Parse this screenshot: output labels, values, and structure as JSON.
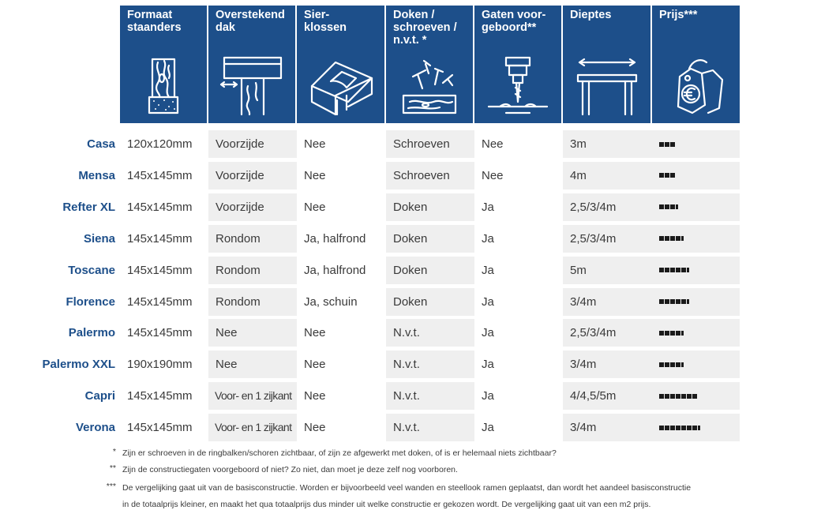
{
  "headers": [
    {
      "label": "Formaat\nstaanders",
      "icon": "wooden-post-icon"
    },
    {
      "label": "Overstekend\ndak",
      "icon": "roof-overhang-icon"
    },
    {
      "label": "Sier-\nklossen",
      "icon": "decorative-corner-block-icon"
    },
    {
      "label": "Doken /\nschroeven /\nn.v.t. *",
      "icon": "dowels-screws-icon"
    },
    {
      "label": "Gaten voor-\ngeboord**",
      "icon": "drill-hole-icon"
    },
    {
      "label": "Dieptes",
      "icon": "depth-table-icon"
    },
    {
      "label": "Prijs***",
      "icon": "price-tag-euro-icon"
    }
  ],
  "rows": [
    {
      "name": "Casa",
      "cells": [
        "120x120mm",
        "Voorzijde",
        "Nee",
        "Schroeven",
        "Nee",
        "3m"
      ],
      "price_level": 3
    },
    {
      "name": "Mensa",
      "cells": [
        "145x145mm",
        "Voorzijde",
        "Nee",
        "Schroeven",
        "Nee",
        "4m"
      ],
      "price_level": 3
    },
    {
      "name": "Refter XL",
      "cells": [
        "145x145mm",
        "Voorzijde",
        "Nee",
        "Doken",
        "Ja",
        "2,5/3/4m"
      ],
      "price_level": 3.5
    },
    {
      "name": "Siena",
      "cells": [
        "145x145mm",
        "Rondom",
        "Ja, halfrond",
        "Doken",
        "Ja",
        "2,5/3/4m"
      ],
      "price_level": 4.5
    },
    {
      "name": "Toscane",
      "cells": [
        "145x145mm",
        "Rondom",
        "Ja, halfrond",
        "Doken",
        "Ja",
        "5m"
      ],
      "price_level": 5.5
    },
    {
      "name": "Florence",
      "cells": [
        "145x145mm",
        "Rondom",
        "Ja, schuin",
        "Doken",
        "Ja",
        "3/4m"
      ],
      "price_level": 5.5
    },
    {
      "name": "Palermo",
      "cells": [
        "145x145mm",
        "Nee",
        "Nee",
        "N.v.t.",
        "Ja",
        "2,5/3/4m"
      ],
      "price_level": 4.5
    },
    {
      "name": "Palermo XXL",
      "cells": [
        "190x190mm",
        "Nee",
        "Nee",
        "N.v.t.",
        "Ja",
        "3/4m"
      ],
      "price_level": 4.5
    },
    {
      "name": "Capri",
      "cells": [
        "145x145mm",
        "Voor- en 1 zijkant",
        "Nee",
        "N.v.t.",
        "Ja",
        "4/4,5/5m"
      ],
      "price_level": 7
    },
    {
      "name": "Verona",
      "cells": [
        "145x145mm",
        "Voor- en 1 zijkant",
        "Nee",
        "N.v.t.",
        "Ja",
        "3/4m"
      ],
      "price_level": 7.5
    }
  ],
  "footnotes": [
    {
      "mark": "*",
      "text": "Zijn er schroeven in de ringbalken/schoren zichtbaar, of zijn ze afgewerkt met doken, of is er helemaal niets zichtbaar?"
    },
    {
      "mark": "**",
      "text": "Zijn de constructiegaten voorgeboord of niet? Zo niet, dan moet je deze zelf nog voorboren."
    },
    {
      "mark": "***",
      "text": "De vergelijking gaat uit van de basisconstructie. Worden er bijvoorbeeld veel wanden en steellook ramen geplaatst, dan wordt het aandeel basisconstructie"
    },
    {
      "mark": "",
      "text": "in de totaalprijs kleiner, en maakt het qua totaalprijs dus minder uit welke constructie er gekozen wordt. De vergelijking gaat uit van een m2 prijs."
    }
  ],
  "colors": {
    "header_bg": "#1d4f8a",
    "row_label": "#1d4f8a",
    "shade": "#efefef"
  }
}
